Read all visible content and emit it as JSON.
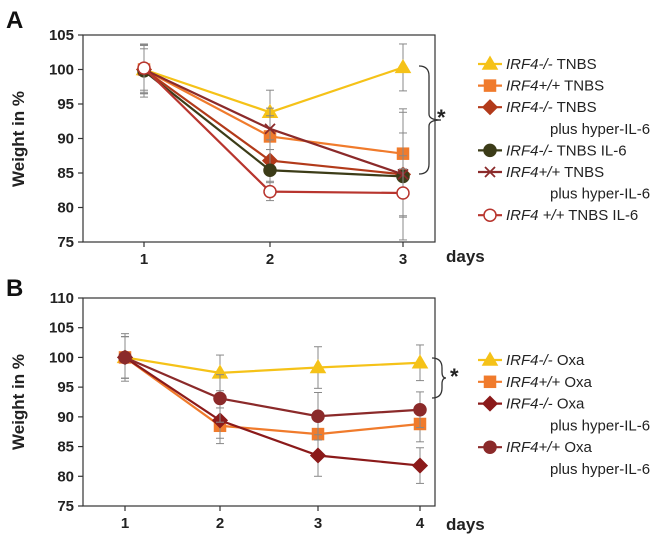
{
  "chart_data": [
    {
      "panel": "A",
      "type": "line",
      "ylabel": "Weight in %",
      "xlabel": "days",
      "x": [
        1,
        2,
        3
      ],
      "ylim": [
        75,
        105
      ],
      "yticks": [
        75,
        80,
        85,
        90,
        95,
        100,
        105
      ],
      "annotation": "*",
      "series": [
        {
          "name": "IRF4-/-  TNBS",
          "name_italic": "IRF4-/-",
          "name_rest": "  TNBS",
          "name_line2": "",
          "color": "#f5c218",
          "marker": "triangle",
          "filled": true,
          "values": [
            100,
            93.8,
            100.3
          ],
          "errors": [
            3.5,
            3.2,
            3.4
          ]
        },
        {
          "name": "IRF4+/+ TNBS",
          "name_italic": "IRF4+/+",
          "name_rest": " TNBS",
          "name_line2": "",
          "color": "#f07b2c",
          "marker": "square",
          "filled": true,
          "values": [
            100,
            90.3,
            87.8
          ],
          "errors": [
            3.5,
            3.0,
            6.0
          ]
        },
        {
          "name": "IRF4-/- TNBS plus hyper-IL-6",
          "name_italic": "IRF4-/-",
          "name_rest": " TNBS",
          "name_line2": "plus hyper-IL-6",
          "color": "#b23a1a",
          "marker": "diamond",
          "filled": true,
          "values": [
            100,
            86.8,
            84.8
          ],
          "errors": [
            3.0,
            3.0,
            6.0
          ]
        },
        {
          "name": "IRF4-/- TNBS IL-6",
          "name_italic": "IRF4-/-",
          "name_rest": " TNBS IL-6",
          "name_line2": "",
          "color": "#3c3c18",
          "marker": "circle",
          "filled": true,
          "values": [
            99.8,
            85.4,
            84.5
          ],
          "errors": [
            3.8,
            3.0,
            3.0
          ]
        },
        {
          "name": "IRF4+/+ TNBS plus hyper-IL-6",
          "name_italic": "IRF4+/+",
          "name_rest": " TNBS",
          "name_line2": "plus hyper-IL-6",
          "color": "#8b2a2a",
          "marker": "x",
          "filled": false,
          "values": [
            100,
            91.4,
            84.8
          ],
          "errors": [
            3.5,
            3.0,
            9.5
          ]
        },
        {
          "name": "IRF4 +/+ TNBS IL-6",
          "name_italic": "IRF4 +/+",
          "name_rest": " TNBS IL-6",
          "name_line2": "",
          "color": "#b8352e",
          "marker": "circle",
          "filled": false,
          "values": [
            100.2,
            82.3,
            82.1
          ],
          "errors": [
            3.5,
            1.3,
            3.5
          ]
        }
      ]
    },
    {
      "panel": "B",
      "type": "line",
      "ylabel": "Weight in %",
      "xlabel": "days",
      "x": [
        1,
        2,
        3,
        4
      ],
      "ylim": [
        75,
        110
      ],
      "yticks": [
        75,
        80,
        85,
        90,
        95,
        100,
        105,
        110
      ],
      "annotation": "*",
      "series": [
        {
          "name": "IRF4-/-  Oxa",
          "name_italic": "IRF4-/-",
          "name_rest": "  Oxa",
          "name_line2": "",
          "color": "#f5c218",
          "marker": "triangle",
          "filled": true,
          "values": [
            100,
            97.4,
            98.3,
            99.1
          ],
          "errors": [
            3.5,
            3.0,
            3.5,
            3.0
          ]
        },
        {
          "name": "IRF4+/+ Oxa",
          "name_italic": "IRF4+/+",
          "name_rest": " Oxa",
          "name_line2": "",
          "color": "#f07b2c",
          "marker": "square",
          "filled": true,
          "values": [
            100,
            88.5,
            87.1,
            88.8
          ],
          "errors": [
            3.5,
            3.0,
            3.0,
            3.0
          ]
        },
        {
          "name": "IRF4-/- Oxa plus hyper-IL-6",
          "name_italic": "IRF4-/-",
          "name_rest": " Oxa",
          "name_line2": "plus hyper-IL-6",
          "color": "#8b1a1a",
          "marker": "diamond",
          "filled": true,
          "values": [
            100,
            89.4,
            83.5,
            81.8
          ],
          "errors": [
            3.5,
            3.0,
            3.5,
            3.0
          ]
        },
        {
          "name": "IRF4+/+ Oxa plus hyper-IL-6",
          "name_italic": "IRF4+/+",
          "name_rest": " Oxa",
          "name_line2": "plus hyper-IL-6",
          "color": "#8b2a2a",
          "marker": "circle",
          "filled": true,
          "values": [
            100,
            93.1,
            90.1,
            91.2
          ],
          "errors": [
            4.0,
            4.0,
            4.0,
            3.0
          ]
        }
      ]
    }
  ]
}
